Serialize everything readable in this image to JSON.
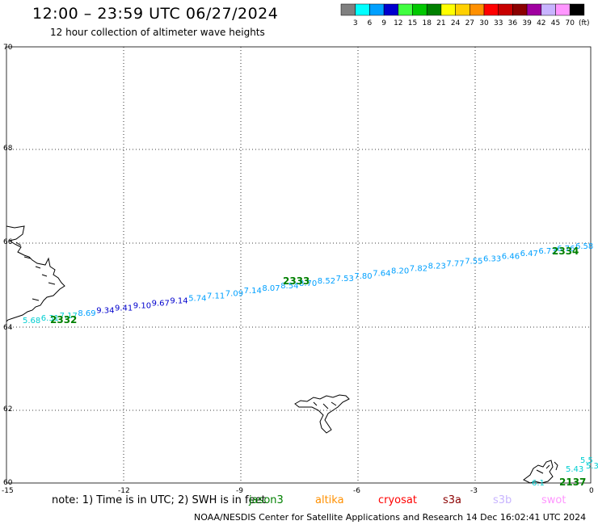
{
  "header": {
    "title": "12:00 – 23:59 UTC 06/27/2024",
    "subtitle": "12 hour collection of altimeter wave heights"
  },
  "legend": {
    "unit": "(ft)",
    "swatches": [
      {
        "label": "3",
        "color": "#808080"
      },
      {
        "label": "6",
        "color": "#00ffff"
      },
      {
        "label": "9",
        "color": "#00a0ff"
      },
      {
        "label": "12",
        "color": "#0000cd"
      },
      {
        "label": "15",
        "color": "#40ff40"
      },
      {
        "label": "18",
        "color": "#00c800"
      },
      {
        "label": "21",
        "color": "#008000"
      },
      {
        "label": "24",
        "color": "#ffff00"
      },
      {
        "label": "27",
        "color": "#ffd000"
      },
      {
        "label": "30",
        "color": "#ff9000"
      },
      {
        "label": "33",
        "color": "#ff0000"
      },
      {
        "label": "36",
        "color": "#c80000"
      },
      {
        "label": "39",
        "color": "#8b0000"
      },
      {
        "label": "42",
        "color": "#a000a0"
      },
      {
        "label": "45",
        "color": "#c8b4ff"
      },
      {
        "label": "70",
        "color": "#ff96ff"
      },
      {
        "label": "",
        "color": "#000000"
      }
    ]
  },
  "axes": {
    "lat_labels": [
      "70",
      "68",
      "66",
      "64",
      "62",
      "60"
    ],
    "lon_labels": [
      "-15",
      "-12",
      "-9",
      "-6",
      "-3",
      "0"
    ]
  },
  "track_points": [
    {
      "v": "5.68",
      "color": "#00ced1"
    },
    {
      "v": "6.31",
      "color": "#00ced1"
    },
    {
      "v": "7.17",
      "color": "#00ced1"
    },
    {
      "v": "8.69",
      "color": "#00a0ff"
    },
    {
      "v": "9.34",
      "color": "#0000cd"
    },
    {
      "v": "9.41",
      "color": "#0000cd"
    },
    {
      "v": "9.10",
      "color": "#0000cd"
    },
    {
      "v": "9.67",
      "color": "#0000cd"
    },
    {
      "v": "9.14",
      "color": "#0000cd"
    },
    {
      "v": "5.74",
      "color": "#00a0ff"
    },
    {
      "v": "7.11",
      "color": "#00a0ff"
    },
    {
      "v": "7.09",
      "color": "#00a0ff"
    },
    {
      "v": "7.14",
      "color": "#00a0ff"
    },
    {
      "v": "8.07",
      "color": "#00a0ff"
    },
    {
      "v": "8.54",
      "color": "#00a0ff"
    },
    {
      "v": "8.70",
      "color": "#00a0ff"
    },
    {
      "v": "8.52",
      "color": "#00a0ff"
    },
    {
      "v": "7.53",
      "color": "#00a0ff"
    },
    {
      "v": "7.80",
      "color": "#00a0ff"
    },
    {
      "v": "7.64",
      "color": "#00a0ff"
    },
    {
      "v": "8.20",
      "color": "#00a0ff"
    },
    {
      "v": "7.82",
      "color": "#00a0ff"
    },
    {
      "v": "8.23",
      "color": "#00a0ff"
    },
    {
      "v": "7.77",
      "color": "#00a0ff"
    },
    {
      "v": "7.55",
      "color": "#00a0ff"
    },
    {
      "v": "6.33",
      "color": "#00a0ff"
    },
    {
      "v": "6.46",
      "color": "#00a0ff"
    },
    {
      "v": "6.47",
      "color": "#00a0ff"
    },
    {
      "v": "6.73",
      "color": "#00a0ff"
    },
    {
      "v": "6.76",
      "color": "#00a0ff"
    },
    {
      "v": "6.58",
      "color": "#00a0ff"
    }
  ],
  "se_points": [
    {
      "v": "5.5",
      "color": "#00ced1"
    },
    {
      "v": "5.43",
      "color": "#00ced1"
    },
    {
      "v": "5.3",
      "color": "#00ced1"
    },
    {
      "v": "6.1",
      "color": "#00ced1"
    }
  ],
  "hour_labels": [
    "2332",
    "2333",
    "2334",
    "2137"
  ],
  "footer": {
    "note": "note:  1) Time is in UTC;  2) SWH is in feet",
    "satellites": [
      {
        "name": "jason3",
        "color": "#008000"
      },
      {
        "name": "altika",
        "color": "#ff9000"
      },
      {
        "name": "cryosat",
        "color": "#ff0000"
      },
      {
        "name": "s3a",
        "color": "#8b0000"
      },
      {
        "name": "s3b",
        "color": "#c8b4ff"
      },
      {
        "name": "swot",
        "color": "#ff96ff"
      }
    ],
    "credit": "NOAA/NESDIS Center for Satellite Applications and Research    14 Dec 16:02:41 UTC 2024"
  }
}
